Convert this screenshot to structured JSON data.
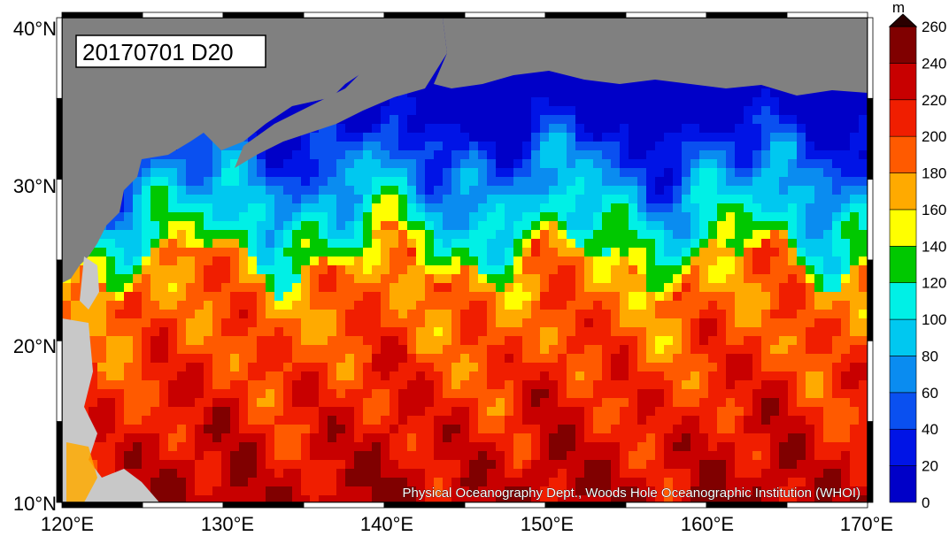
{
  "title_label": "20170701 D20",
  "credit": "Physical Oceanography Dept., Woods Hole Oceanographic Institution (WHOI)",
  "lat_ticks": [
    "40°N",
    "30°N",
    "20°N",
    "10°N"
  ],
  "lon_ticks": [
    "120°E",
    "130°E",
    "140°E",
    "150°E",
    "160°E",
    "170°E"
  ],
  "colorbar": {
    "unit": "m",
    "labels": [
      "0",
      "20",
      "40",
      "60",
      "80",
      "100",
      "120",
      "140",
      "160",
      "180",
      "200",
      "220",
      "240",
      "260"
    ],
    "colors": [
      "#0000c8",
      "#0014e6",
      "#0a50f0",
      "#0a8cf0",
      "#00c8f0",
      "#00f0e6",
      "#00c800",
      "#ffff00",
      "#ffaa00",
      "#ff5a00",
      "#f01e00",
      "#c80000",
      "#800000"
    ]
  },
  "map_extent": {
    "lon": [
      120,
      170
    ],
    "lat": [
      10,
      40
    ]
  },
  "colors": {
    "land": "#808080",
    "land_light": "#c8c8c8"
  }
}
